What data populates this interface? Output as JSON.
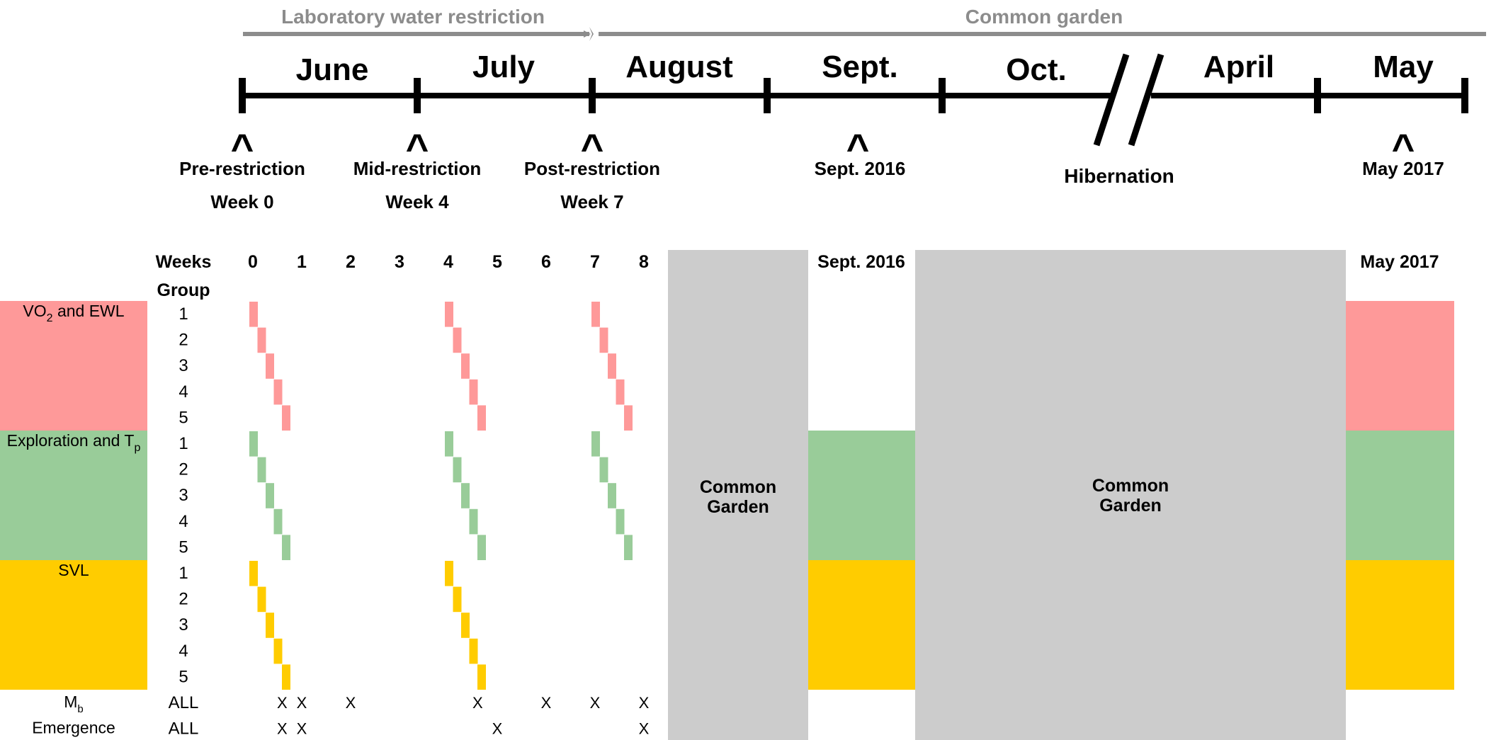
{
  "phases": [
    {
      "label": "Laboratory water restriction"
    },
    {
      "label": "Common garden"
    }
  ],
  "months": [
    "June",
    "July",
    "August",
    "Sept.",
    "Oct.",
    "April",
    "May"
  ],
  "timepoints": [
    {
      "line1": "Pre-restriction",
      "line2": "Week 0"
    },
    {
      "line1": "Mid-restriction",
      "line2": "Week 4"
    },
    {
      "line1": "Post-restriction",
      "line2": "Week 7"
    },
    {
      "line1": "Sept. 2016",
      "line2": ""
    },
    {
      "line1": "May 2017",
      "line2": ""
    }
  ],
  "caret": "^",
  "hibernation_label": "Hibernation",
  "table": {
    "weeks_label": "Weeks",
    "group_label": "Group",
    "weeks": [
      "0",
      "1",
      "2",
      "3",
      "4",
      "5",
      "6",
      "7",
      "8"
    ],
    "sept_label": "Sept. 2016",
    "may_label": "May 2017",
    "common_garden_line1": "Common",
    "common_garden_line2": "Garden",
    "measures": [
      {
        "label": "VO",
        "sub": "2",
        "suffix": " and EWL",
        "color": "#fe9999",
        "groups": [
          "1",
          "2",
          "3",
          "4",
          "5"
        ],
        "sampled_weeks": [
          0,
          4,
          7
        ],
        "sept": false,
        "may": true
      },
      {
        "label": "Exploration and T",
        "sub": "p",
        "suffix": "",
        "color": "#99cc99",
        "groups": [
          "1",
          "2",
          "3",
          "4",
          "5"
        ],
        "sampled_weeks": [
          0,
          4,
          7
        ],
        "sept": true,
        "may": true
      },
      {
        "label": "SVL",
        "sub": "",
        "suffix": "",
        "color": "#ffcc00",
        "groups": [
          "1",
          "2",
          "3",
          "4",
          "5"
        ],
        "sampled_weeks": [
          0,
          4
        ],
        "sept": true,
        "may": true
      }
    ],
    "all_rows": [
      {
        "label": "M",
        "sub": "b",
        "group": "ALL",
        "x_mark": "X",
        "x_weeks": [
          0.6,
          1.0,
          2.0,
          4.6,
          6.0,
          7.0,
          8.0
        ]
      },
      {
        "label": "Emergence",
        "sub": "",
        "group": "ALL",
        "x_mark": "X",
        "x_weeks": [
          0.6,
          1.0,
          5.0,
          8.0
        ]
      }
    ]
  },
  "colors": {
    "arrow": "#8c8c8c",
    "timeline": "#000000",
    "common_garden_fill": "#cccccc"
  }
}
